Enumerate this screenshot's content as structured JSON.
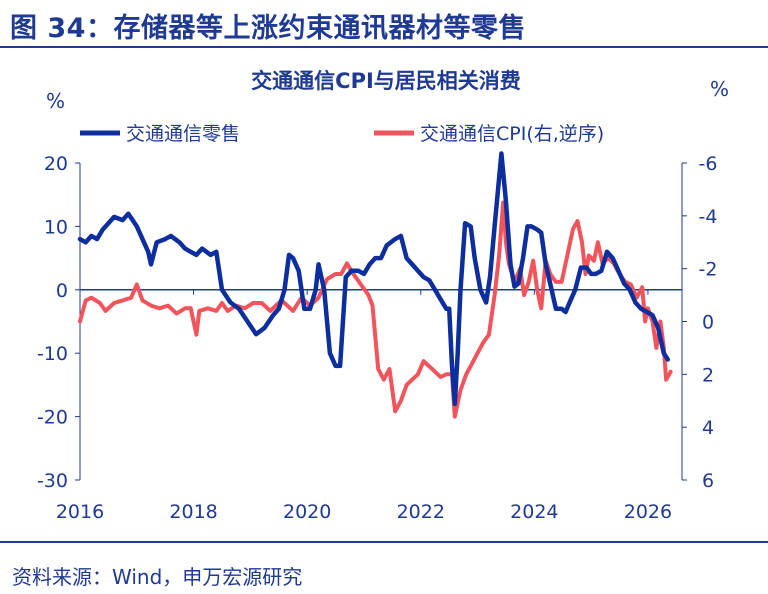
{
  "figure": {
    "title": "图 34：存储器等上涨约束通讯器材等零售",
    "source": "资料来源：Wind，申万宏源研究"
  },
  "chart_data": {
    "type": "line",
    "title": "交通通信CPI与居民相关消费",
    "left_axis_unit": "%",
    "right_axis_unit": "%",
    "left_ylim": [
      -30,
      20
    ],
    "left_yticks": [
      "20",
      "10",
      "0",
      "-10",
      "-20",
      "-30"
    ],
    "right_ylim": [
      -6,
      6
    ],
    "right_inverted": true,
    "right_yticks": [
      "-6",
      "-4",
      "-2",
      "0",
      "2",
      "4",
      "6"
    ],
    "x_ticks": [
      "2016",
      "2018",
      "2020",
      "2022",
      "2024",
      "2026"
    ],
    "x_range": [
      2016,
      2026.6
    ],
    "grid": false,
    "legend_position": "top",
    "series": [
      {
        "name": "交通通信零售",
        "axis": "left",
        "color": "#0d2e9e",
        "points": [
          [
            2016.0,
            8
          ],
          [
            2016.1,
            7.5
          ],
          [
            2016.2,
            8.5
          ],
          [
            2016.3,
            8
          ],
          [
            2016.4,
            9.5
          ],
          [
            2016.5,
            10.5
          ],
          [
            2016.6,
            11.5
          ],
          [
            2016.75,
            11
          ],
          [
            2016.85,
            12
          ],
          [
            2017.0,
            10
          ],
          [
            2017.1,
            8
          ],
          [
            2017.2,
            6
          ],
          [
            2017.25,
            4
          ],
          [
            2017.35,
            7.5
          ],
          [
            2017.5,
            8
          ],
          [
            2017.6,
            8.5
          ],
          [
            2017.75,
            7.5
          ],
          [
            2017.85,
            6.5
          ],
          [
            2017.95,
            6
          ],
          [
            2018.05,
            5.5
          ],
          [
            2018.15,
            6.5
          ],
          [
            2018.3,
            5.5
          ],
          [
            2018.4,
            6
          ],
          [
            2018.5,
            0
          ],
          [
            2018.65,
            -2
          ],
          [
            2018.8,
            -3
          ],
          [
            2018.95,
            -5
          ],
          [
            2019.1,
            -7
          ],
          [
            2019.25,
            -6
          ],
          [
            2019.4,
            -4
          ],
          [
            2019.5,
            -3
          ],
          [
            2019.6,
            0
          ],
          [
            2019.68,
            5.5
          ],
          [
            2019.75,
            5
          ],
          [
            2019.85,
            3
          ],
          [
            2019.95,
            -3
          ],
          [
            2020.05,
            -3
          ],
          [
            2020.15,
            0
          ],
          [
            2020.2,
            4
          ],
          [
            2020.3,
            0
          ],
          [
            2020.4,
            -10
          ],
          [
            2020.5,
            -12
          ],
          [
            2020.58,
            -12
          ],
          [
            2020.68,
            2
          ],
          [
            2020.78,
            3
          ],
          [
            2020.9,
            3
          ],
          [
            2021.0,
            2.5
          ],
          [
            2021.1,
            4
          ],
          [
            2021.2,
            5
          ],
          [
            2021.3,
            5
          ],
          [
            2021.4,
            7
          ],
          [
            2021.55,
            8
          ],
          [
            2021.65,
            8.5
          ],
          [
            2021.75,
            5
          ],
          [
            2021.85,
            4
          ],
          [
            2021.95,
            3
          ],
          [
            2022.05,
            2
          ],
          [
            2022.15,
            1.5
          ],
          [
            2022.25,
            0
          ],
          [
            2022.35,
            -1.5
          ],
          [
            2022.45,
            -3
          ],
          [
            2022.5,
            -3
          ],
          [
            2022.55,
            -12
          ],
          [
            2022.6,
            -18
          ],
          [
            2022.65,
            -10
          ],
          [
            2022.7,
            0
          ],
          [
            2022.78,
            10.5
          ],
          [
            2022.88,
            10
          ],
          [
            2022.95,
            5
          ],
          [
            2023.05,
            0
          ],
          [
            2023.15,
            -2
          ],
          [
            2023.22,
            2
          ],
          [
            2023.3,
            10
          ],
          [
            2023.42,
            21.5
          ],
          [
            2023.5,
            14
          ],
          [
            2023.58,
            4
          ],
          [
            2023.65,
            0.5
          ],
          [
            2023.72,
            1
          ],
          [
            2023.8,
            5
          ],
          [
            2023.88,
            10
          ],
          [
            2023.95,
            10
          ],
          [
            2024.05,
            9.5
          ],
          [
            2024.12,
            9
          ],
          [
            2024.2,
            4
          ],
          [
            2024.28,
            1
          ],
          [
            2024.38,
            -3
          ],
          [
            2024.48,
            -3
          ],
          [
            2024.55,
            -3.5
          ],
          [
            2024.62,
            -2
          ],
          [
            2024.72,
            0
          ],
          [
            2024.82,
            3.5
          ],
          [
            2024.92,
            3.5
          ],
          [
            2025.0,
            2.5
          ],
          [
            2025.08,
            2.5
          ],
          [
            2025.18,
            3
          ],
          [
            2025.28,
            6
          ],
          [
            2025.38,
            5
          ],
          [
            2025.48,
            3
          ],
          [
            2025.58,
            1
          ],
          [
            2025.68,
            0
          ],
          [
            2025.78,
            -2
          ],
          [
            2025.88,
            -3
          ],
          [
            2025.98,
            -3.5
          ],
          [
            2026.08,
            -4
          ],
          [
            2026.18,
            -6
          ],
          [
            2026.28,
            -10
          ],
          [
            2026.35,
            -11
          ]
        ]
      },
      {
        "name": "交通通信CPI(右,逆序)",
        "axis": "right",
        "color": "#f2545b",
        "points": [
          [
            2016.0,
            0
          ],
          [
            2016.1,
            -0.8
          ],
          [
            2016.2,
            -0.9
          ],
          [
            2016.35,
            -0.7
          ],
          [
            2016.45,
            -0.4
          ],
          [
            2016.6,
            -0.7
          ],
          [
            2016.75,
            -0.8
          ],
          [
            2016.9,
            -0.9
          ],
          [
            2017.0,
            -1.4
          ],
          [
            2017.1,
            -0.8
          ],
          [
            2017.25,
            -0.6
          ],
          [
            2017.4,
            -0.5
          ],
          [
            2017.55,
            -0.6
          ],
          [
            2017.7,
            -0.3
          ],
          [
            2017.85,
            -0.5
          ],
          [
            2017.95,
            -0.5
          ],
          [
            2018.05,
            0.5
          ],
          [
            2018.1,
            -0.4
          ],
          [
            2018.25,
            -0.5
          ],
          [
            2018.4,
            -0.4
          ],
          [
            2018.5,
            -0.7
          ],
          [
            2018.6,
            -0.4
          ],
          [
            2018.75,
            -0.6
          ],
          [
            2018.9,
            -0.5
          ],
          [
            2019.05,
            -0.7
          ],
          [
            2019.2,
            -0.7
          ],
          [
            2019.35,
            -0.4
          ],
          [
            2019.45,
            -0.6
          ],
          [
            2019.55,
            -0.8
          ],
          [
            2019.65,
            -0.6
          ],
          [
            2019.75,
            -0.4
          ],
          [
            2019.9,
            -0.9
          ],
          [
            2020.05,
            -0.6
          ],
          [
            2020.2,
            -0.9
          ],
          [
            2020.35,
            -1.6
          ],
          [
            2020.5,
            -1.8
          ],
          [
            2020.6,
            -1.8
          ],
          [
            2020.7,
            -2.2
          ],
          [
            2020.78,
            -1.9
          ],
          [
            2020.88,
            -1.6
          ],
          [
            2020.98,
            -1.3
          ],
          [
            2021.08,
            -1.0
          ],
          [
            2021.15,
            -0.6
          ],
          [
            2021.25,
            1.8
          ],
          [
            2021.35,
            2.2
          ],
          [
            2021.45,
            1.8
          ],
          [
            2021.55,
            3.4
          ],
          [
            2021.65,
            3.0
          ],
          [
            2021.75,
            2.4
          ],
          [
            2021.85,
            2.2
          ],
          [
            2021.95,
            2.0
          ],
          [
            2022.05,
            1.5
          ],
          [
            2022.15,
            1.7
          ],
          [
            2022.25,
            1.9
          ],
          [
            2022.35,
            2.1
          ],
          [
            2022.45,
            2.0
          ],
          [
            2022.55,
            2.0
          ],
          [
            2022.6,
            3.6
          ],
          [
            2022.7,
            2.6
          ],
          [
            2022.8,
            2.0
          ],
          [
            2022.9,
            1.6
          ],
          [
            2023.0,
            1.2
          ],
          [
            2023.1,
            0.8
          ],
          [
            2023.2,
            0.5
          ],
          [
            2023.3,
            -1.0
          ],
          [
            2023.38,
            -2.5
          ],
          [
            2023.45,
            -4.5
          ],
          [
            2023.5,
            -3.0
          ],
          [
            2023.55,
            -2.2
          ],
          [
            2023.65,
            -1.5
          ],
          [
            2023.75,
            -2.0
          ],
          [
            2023.82,
            -1.0
          ],
          [
            2023.9,
            -1.5
          ],
          [
            2023.98,
            -2.3
          ],
          [
            2024.05,
            -1.2
          ],
          [
            2024.12,
            -0.5
          ],
          [
            2024.2,
            -2.3
          ],
          [
            2024.28,
            -1.8
          ],
          [
            2024.38,
            -1.5
          ],
          [
            2024.48,
            -1.5
          ],
          [
            2024.58,
            -2.5
          ],
          [
            2024.68,
            -3.5
          ],
          [
            2024.76,
            -3.8
          ],
          [
            2024.84,
            -3.0
          ],
          [
            2024.9,
            -1.8
          ],
          [
            2024.96,
            -2.5
          ],
          [
            2025.05,
            -2.3
          ],
          [
            2025.12,
            -3.0
          ],
          [
            2025.2,
            -2.2
          ],
          [
            2025.3,
            -2.4
          ],
          [
            2025.4,
            -2.2
          ],
          [
            2025.5,
            -1.8
          ],
          [
            2025.6,
            -1.5
          ],
          [
            2025.7,
            -1.4
          ],
          [
            2025.8,
            -0.9
          ],
          [
            2025.9,
            -1.3
          ],
          [
            2025.95,
            0
          ],
          [
            2026.0,
            -0.5
          ],
          [
            2026.08,
            0
          ],
          [
            2026.15,
            1.0
          ],
          [
            2026.22,
            0
          ],
          [
            2026.28,
            1.0
          ],
          [
            2026.32,
            2.2
          ],
          [
            2026.4,
            1.9
          ]
        ]
      }
    ]
  }
}
